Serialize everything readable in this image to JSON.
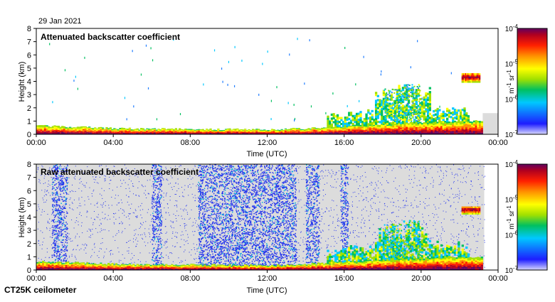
{
  "date": "29 Jan 2021",
  "instrument": "CT25K ceilometer",
  "colormap_stops": [
    "#1d1dff",
    "#1f7dff",
    "#00c8ff",
    "#00c060",
    "#a0e000",
    "#ffff00",
    "#ff9000",
    "#ff2000",
    "#b00020",
    "#600060"
  ],
  "colors": {
    "background": "#ffffff",
    "gray_noise": "#dcdcdc",
    "blue_noise": "#2233ee"
  },
  "chart_data": [
    {
      "type": "heatmap",
      "title": "Attenuated backscatter coefficient",
      "xlabel": "Time (UTC)",
      "ylabel": "Height (km)",
      "x_ticks": [
        "00:00",
        "04:00",
        "08:00",
        "12:00",
        "16:00",
        "20:00",
        "00:00"
      ],
      "y_ticks": [
        "0",
        "1",
        "2",
        "3",
        "4",
        "5",
        "6",
        "7",
        "8"
      ],
      "ylim": [
        0,
        8
      ],
      "xlim_hours": [
        0,
        24
      ],
      "colorbar": {
        "label": "m-1 sr-1",
        "scale": "log",
        "ticks": [
          "10^-7",
          "10^-6",
          "10^-5",
          "10^-4"
        ]
      },
      "boundary_layer_top_km": [
        [
          0,
          0.65
        ],
        [
          2,
          0.55
        ],
        [
          4,
          0.45
        ],
        [
          6,
          0.4
        ],
        [
          8,
          0.4
        ],
        [
          10,
          0.38
        ],
        [
          12,
          0.35
        ],
        [
          14,
          0.45
        ],
        [
          16,
          0.6
        ],
        [
          18,
          0.8
        ],
        [
          20,
          0.9
        ],
        [
          22,
          1.0
        ],
        [
          23,
          1.0
        ]
      ],
      "cloud_layers": [
        {
          "time_h": [
            22.1,
            23.0
          ],
          "height_km": [
            3.9,
            4.6
          ]
        }
      ],
      "convective_plumes": [
        {
          "time_h": 18.5,
          "top_km": 3.5
        },
        {
          "time_h": 19.5,
          "top_km": 3.8
        }
      ]
    },
    {
      "type": "heatmap",
      "title": "Raw attenuated backscatter coefficient",
      "xlabel": "Time (UTC)",
      "ylabel": "Height (km)",
      "x_ticks": [
        "00:00",
        "04:00",
        "08:00",
        "12:00",
        "16:00",
        "20:00",
        "00:00"
      ],
      "y_ticks": [
        "0",
        "1",
        "2",
        "3",
        "4",
        "5",
        "6",
        "7",
        "8"
      ],
      "ylim": [
        0,
        8
      ],
      "xlim_hours": [
        0,
        24
      ],
      "colorbar": {
        "label": "m-1 sr-1",
        "scale": "log",
        "ticks": [
          "10^-7",
          "10^-6",
          "10^-5",
          "10^-4"
        ]
      },
      "cloud_layers": [
        {
          "time_h": [
            22.1,
            23.0
          ],
          "height_km": [
            4.2,
            4.8
          ]
        }
      ],
      "noise_bands_time_h": [
        [
          0.8,
          1.6
        ],
        [
          6.0,
          6.5
        ],
        [
          8.4,
          13.5
        ],
        [
          14.0,
          14.7
        ],
        [
          15.8,
          16.2
        ]
      ]
    }
  ]
}
